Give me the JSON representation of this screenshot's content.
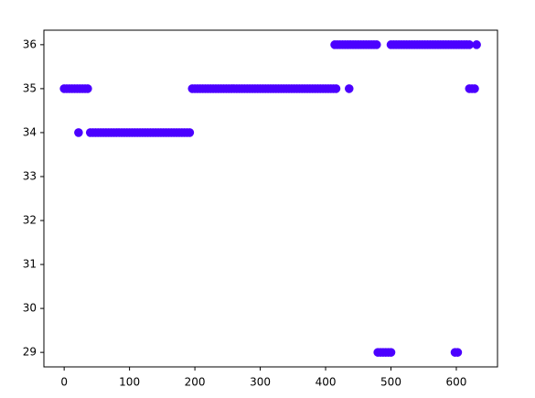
{
  "chart_data": {
    "type": "scatter",
    "color": "#4b00ff",
    "x": [
      0,
      4,
      8,
      12,
      16,
      20,
      24,
      28,
      32,
      36,
      22,
      40,
      44,
      48,
      52,
      56,
      60,
      64,
      68,
      72,
      76,
      80,
      84,
      88,
      92,
      96,
      100,
      104,
      108,
      112,
      116,
      120,
      124,
      128,
      132,
      136,
      140,
      144,
      148,
      152,
      156,
      160,
      164,
      168,
      172,
      176,
      180,
      184,
      188,
      192,
      196,
      200,
      204,
      208,
      212,
      216,
      220,
      224,
      228,
      232,
      236,
      240,
      244,
      248,
      252,
      256,
      260,
      264,
      268,
      272,
      276,
      280,
      284,
      288,
      292,
      296,
      300,
      304,
      308,
      312,
      316,
      320,
      324,
      328,
      332,
      336,
      340,
      344,
      348,
      352,
      356,
      360,
      364,
      368,
      372,
      376,
      380,
      384,
      388,
      392,
      396,
      400,
      404,
      408,
      412,
      416,
      436,
      414,
      418,
      422,
      426,
      430,
      434,
      438,
      442,
      446,
      450,
      454,
      458,
      462,
      466,
      470,
      474,
      478,
      480,
      484,
      488,
      492,
      496,
      500,
      500,
      504,
      508,
      512,
      516,
      520,
      524,
      528,
      532,
      536,
      540,
      544,
      548,
      552,
      556,
      560,
      564,
      568,
      572,
      576,
      580,
      584,
      588,
      592,
      596,
      598,
      602,
      600,
      604,
      608,
      612,
      616,
      620,
      631,
      620,
      624,
      628
    ],
    "values": [
      35,
      35,
      35,
      35,
      35,
      35,
      35,
      35,
      35,
      35,
      34,
      34,
      34,
      34,
      34,
      34,
      34,
      34,
      34,
      34,
      34,
      34,
      34,
      34,
      34,
      34,
      34,
      34,
      34,
      34,
      34,
      34,
      34,
      34,
      34,
      34,
      34,
      34,
      34,
      34,
      34,
      34,
      34,
      34,
      34,
      34,
      34,
      34,
      34,
      34,
      35,
      35,
      35,
      35,
      35,
      35,
      35,
      35,
      35,
      35,
      35,
      35,
      35,
      35,
      35,
      35,
      35,
      35,
      35,
      35,
      35,
      35,
      35,
      35,
      35,
      35,
      35,
      35,
      35,
      35,
      35,
      35,
      35,
      35,
      35,
      35,
      35,
      35,
      35,
      35,
      35,
      35,
      35,
      35,
      35,
      35,
      35,
      35,
      35,
      35,
      35,
      35,
      35,
      35,
      35,
      35,
      35,
      36,
      36,
      36,
      36,
      36,
      36,
      36,
      36,
      36,
      36,
      36,
      36,
      36,
      36,
      36,
      36,
      36,
      29,
      29,
      29,
      29,
      29,
      29,
      36,
      36,
      36,
      36,
      36,
      36,
      36,
      36,
      36,
      36,
      36,
      36,
      36,
      36,
      36,
      36,
      36,
      36,
      36,
      36,
      36,
      36,
      36,
      36,
      36,
      29,
      29,
      36,
      36,
      36,
      36,
      36,
      36,
      36,
      35,
      35,
      35
    ],
    "xlim": [
      -31,
      663
    ],
    "ylim": [
      28.67,
      36.33
    ],
    "xticks": [
      0,
      100,
      200,
      300,
      400,
      500,
      600
    ],
    "yticks": [
      29,
      30,
      31,
      32,
      33,
      34,
      35,
      36
    ]
  }
}
